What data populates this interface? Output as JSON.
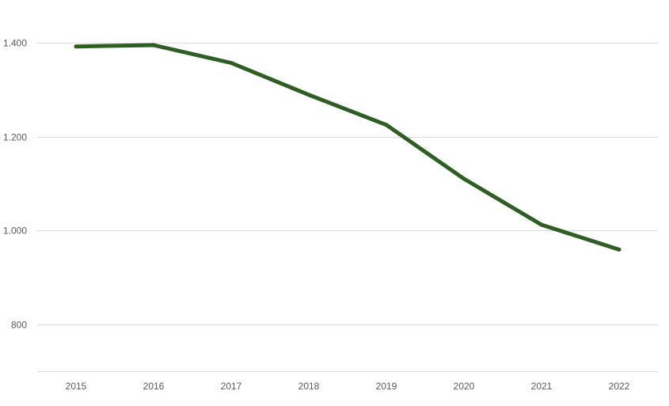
{
  "chart_data": {
    "type": "line",
    "title": "",
    "xlabel": "",
    "ylabel": "",
    "categories": [
      "2015",
      "2016",
      "2017",
      "2018",
      "2019",
      "2020",
      "2021",
      "2022"
    ],
    "series": [
      {
        "color": "#2e5f22",
        "values": [
          1392,
          1395,
          1357,
          1289,
          1225,
          1110,
          1012,
          959
        ]
      }
    ],
    "ylim": [
      700,
      1400
    ],
    "yticks": [
      {
        "value": 800,
        "label": "800"
      },
      {
        "value": 1000,
        "label": "1.000"
      },
      {
        "value": 1200,
        "label": "1.200"
      },
      {
        "value": 1400,
        "label": "1.400"
      }
    ],
    "grid": true,
    "legend": "none"
  }
}
